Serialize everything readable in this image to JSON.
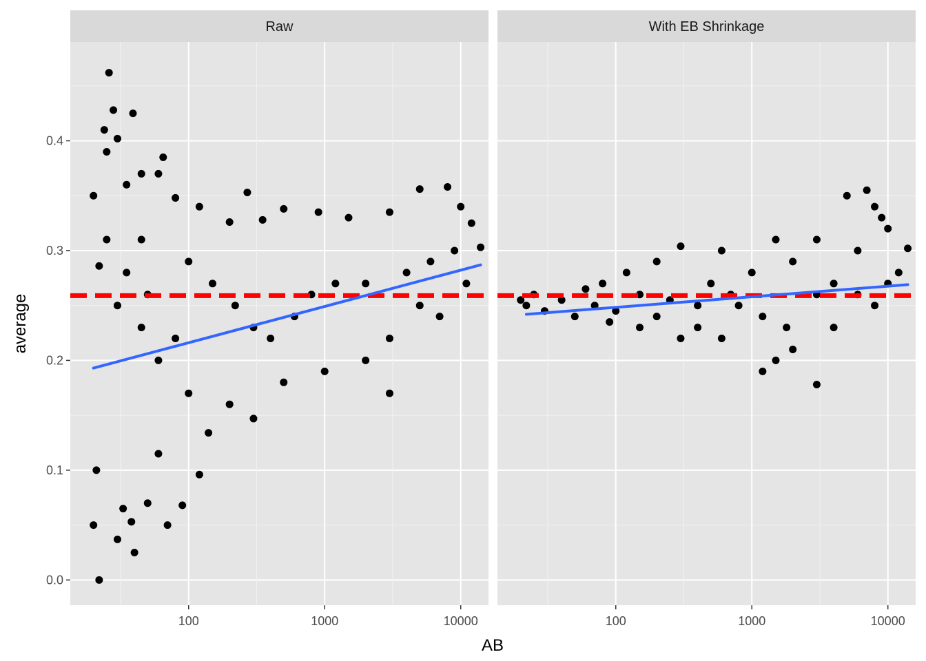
{
  "chart_data": {
    "type": "scatter",
    "facet_layout": "1 row x 2 columns",
    "xlabel": "AB",
    "ylabel": "average",
    "x_scale": "log10",
    "x_ticks": [
      100,
      1000,
      10000
    ],
    "y_ticks": [
      0.0,
      0.1,
      0.2,
      0.3,
      0.4
    ],
    "y_tick_labels": [
      "0.0",
      "0.1",
      "0.2",
      "0.3",
      "0.4"
    ],
    "x_tick_labels": [
      "100",
      "1000",
      "10000"
    ],
    "xlim": [
      13.5,
      16000
    ],
    "ylim": [
      -0.023,
      0.49
    ],
    "grid": true,
    "colors": {
      "panel_background": "#e5e5e5",
      "strip_background": "#d9d9d9",
      "points": "#000000",
      "trend_line": "#3366ff",
      "reference_line": "#ff0000"
    },
    "reference_line": {
      "style": "dashed",
      "y": 0.259
    },
    "panels": [
      {
        "strip_label": "Raw",
        "trend_line": {
          "x": [
            20,
            14000
          ],
          "y": [
            0.193,
            0.287
          ]
        },
        "points": [
          [
            22,
            0.0
          ],
          [
            40,
            0.025
          ],
          [
            20,
            0.05
          ],
          [
            38,
            0.053
          ],
          [
            30,
            0.037
          ],
          [
            21,
            0.1
          ],
          [
            33,
            0.065
          ],
          [
            50,
            0.07
          ],
          [
            26,
            0.462
          ],
          [
            28,
            0.428
          ],
          [
            39,
            0.425
          ],
          [
            24,
            0.41
          ],
          [
            30,
            0.402
          ],
          [
            25,
            0.39
          ],
          [
            35,
            0.36
          ],
          [
            45,
            0.37
          ],
          [
            65,
            0.385
          ],
          [
            60,
            0.37
          ],
          [
            80,
            0.348
          ],
          [
            20,
            0.35
          ],
          [
            270,
            0.353
          ],
          [
            500,
            0.338
          ],
          [
            900,
            0.335
          ],
          [
            1500,
            0.33
          ],
          [
            3000,
            0.335
          ],
          [
            5000,
            0.356
          ],
          [
            8000,
            0.358
          ],
          [
            10000,
            0.34
          ],
          [
            12000,
            0.325
          ],
          [
            14000,
            0.303
          ],
          [
            120,
            0.34
          ],
          [
            200,
            0.326
          ],
          [
            350,
            0.328
          ],
          [
            90,
            0.068
          ],
          [
            70,
            0.05
          ],
          [
            120,
            0.096
          ],
          [
            60,
            0.115
          ],
          [
            140,
            0.134
          ],
          [
            300,
            0.147
          ],
          [
            3000,
            0.17
          ],
          [
            22,
            0.286
          ],
          [
            25,
            0.31
          ],
          [
            45,
            0.31
          ],
          [
            100,
            0.29
          ],
          [
            150,
            0.27
          ],
          [
            220,
            0.25
          ],
          [
            300,
            0.23
          ],
          [
            400,
            0.22
          ],
          [
            600,
            0.24
          ],
          [
            800,
            0.26
          ],
          [
            1200,
            0.27
          ],
          [
            2000,
            0.27
          ],
          [
            4000,
            0.28
          ],
          [
            6000,
            0.29
          ],
          [
            9000,
            0.3
          ],
          [
            11000,
            0.27
          ],
          [
            7000,
            0.24
          ],
          [
            5000,
            0.25
          ],
          [
            3000,
            0.22
          ],
          [
            2000,
            0.2
          ],
          [
            1000,
            0.19
          ],
          [
            500,
            0.18
          ],
          [
            200,
            0.16
          ],
          [
            100,
            0.17
          ],
          [
            60,
            0.2
          ],
          [
            45,
            0.23
          ],
          [
            30,
            0.25
          ],
          [
            35,
            0.28
          ],
          [
            50,
            0.26
          ],
          [
            80,
            0.22
          ]
        ]
      },
      {
        "strip_label": "With EB Shrinkage",
        "trend_line": {
          "x": [
            22,
            14000
          ],
          "y": [
            0.242,
            0.269
          ]
        },
        "points": [
          [
            20,
            0.255
          ],
          [
            22,
            0.25
          ],
          [
            25,
            0.26
          ],
          [
            30,
            0.245
          ],
          [
            40,
            0.255
          ],
          [
            50,
            0.24
          ],
          [
            70,
            0.25
          ],
          [
            100,
            0.245
          ],
          [
            150,
            0.23
          ],
          [
            200,
            0.24
          ],
          [
            300,
            0.22
          ],
          [
            400,
            0.23
          ],
          [
            600,
            0.22
          ],
          [
            800,
            0.25
          ],
          [
            1200,
            0.24
          ],
          [
            1500,
            0.2
          ],
          [
            3000,
            0.178
          ],
          [
            1200,
            0.19
          ],
          [
            2000,
            0.21
          ],
          [
            4000,
            0.23
          ],
          [
            5000,
            0.35
          ],
          [
            7000,
            0.355
          ],
          [
            8000,
            0.34
          ],
          [
            9000,
            0.33
          ],
          [
            10000,
            0.32
          ],
          [
            14000,
            0.302
          ],
          [
            6000,
            0.3
          ],
          [
            3000,
            0.31
          ],
          [
            1500,
            0.31
          ],
          [
            600,
            0.3
          ],
          [
            300,
            0.304
          ],
          [
            200,
            0.29
          ],
          [
            120,
            0.28
          ],
          [
            80,
            0.27
          ],
          [
            60,
            0.265
          ],
          [
            500,
            0.27
          ],
          [
            1000,
            0.28
          ],
          [
            2000,
            0.29
          ],
          [
            4000,
            0.27
          ],
          [
            6000,
            0.26
          ],
          [
            8000,
            0.25
          ],
          [
            10000,
            0.27
          ],
          [
            12000,
            0.28
          ],
          [
            3000,
            0.26
          ],
          [
            700,
            0.26
          ],
          [
            250,
            0.255
          ],
          [
            90,
            0.235
          ],
          [
            150,
            0.26
          ],
          [
            400,
            0.25
          ],
          [
            1800,
            0.23
          ]
        ]
      }
    ]
  }
}
